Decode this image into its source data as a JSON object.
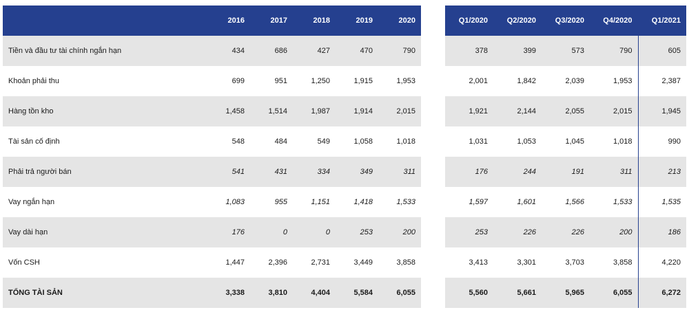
{
  "annual": {
    "headers": [
      "2016",
      "2017",
      "2018",
      "2019",
      "2020"
    ]
  },
  "quarterly": {
    "headers": [
      "Q1/2020",
      "Q2/2020",
      "Q3/2020",
      "Q4/2020",
      "Q1/2021"
    ]
  },
  "rows": [
    {
      "label": "Tiền và đầu tư tài chính ngắn hạn",
      "annual": [
        "434",
        "686",
        "427",
        "470",
        "790"
      ],
      "quarterly": [
        "378",
        "399",
        "573",
        "790",
        "605"
      ]
    },
    {
      "label": "Khoản phải thu",
      "annual": [
        "699",
        "951",
        "1,250",
        "1,915",
        "1,953"
      ],
      "quarterly": [
        "2,001",
        "1,842",
        "2,039",
        "1,953",
        "2,387"
      ]
    },
    {
      "label": "Hàng tồn kho",
      "annual": [
        "1,458",
        "1,514",
        "1,987",
        "1,914",
        "2,015"
      ],
      "quarterly": [
        "1,921",
        "2,144",
        "2,055",
        "2,015",
        "1,945"
      ]
    },
    {
      "label": "Tài sản cố định",
      "annual": [
        "548",
        "484",
        "549",
        "1,058",
        "1,018"
      ],
      "quarterly": [
        "1,031",
        "1,053",
        "1,045",
        "1,018",
        "990"
      ]
    },
    {
      "label": "Phải trả người bán",
      "annual": [
        "541",
        "431",
        "334",
        "349",
        "311"
      ],
      "quarterly": [
        "176",
        "244",
        "191",
        "311",
        "213"
      ]
    },
    {
      "label": "Vay ngắn hạn",
      "annual": [
        "1,083",
        "955",
        "1,151",
        "1,418",
        "1,533"
      ],
      "quarterly": [
        "1,597",
        "1,601",
        "1,566",
        "1,533",
        "1,535"
      ]
    },
    {
      "label": "Vay dài hạn",
      "annual": [
        "176",
        "0",
        "0",
        "253",
        "200"
      ],
      "quarterly": [
        "253",
        "226",
        "226",
        "200",
        "186"
      ]
    },
    {
      "label": "Vốn CSH",
      "annual": [
        "1,447",
        "2,396",
        "2,731",
        "3,449",
        "3,858"
      ],
      "quarterly": [
        "3,413",
        "3,301",
        "3,703",
        "3,858",
        "4,220"
      ]
    },
    {
      "label": "TỔNG TÀI SẢN",
      "annual": [
        "3,338",
        "3,810",
        "4,404",
        "5,584",
        "6,055"
      ],
      "quarterly": [
        "5,560",
        "5,661",
        "5,965",
        "6,055",
        "6,272"
      ]
    }
  ],
  "style": {
    "header_bg": "#25408f",
    "shade_bg": "#e5e5e5",
    "italic_rows": [
      "Phải trả người bán",
      "Vay ngắn hạn",
      "Vay dài hạn"
    ],
    "bold_rows": [
      "TỔNG TÀI SẢN"
    ]
  }
}
